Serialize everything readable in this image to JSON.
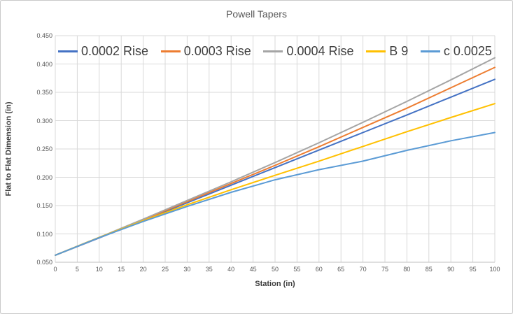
{
  "chart_data": {
    "type": "line",
    "title": "Powell Tapers",
    "xlabel": "Station (in)",
    "ylabel": "Flat to Flat Dimension (in)",
    "xlim": [
      0,
      100
    ],
    "ylim": [
      0.05,
      0.45
    ],
    "x_tick_step": 5,
    "y_tick_step": 0.05,
    "grid": true,
    "legend_position": "top-inside-horizontal",
    "x": [
      0,
      10,
      20,
      30,
      40,
      50,
      60,
      70,
      80,
      90,
      100
    ],
    "series": [
      {
        "name": "0.0002 Rise",
        "color": "#4472C4",
        "values": [
          0.0625,
          0.093,
          0.124,
          0.155,
          0.186,
          0.217,
          0.248,
          0.279,
          0.31,
          0.3415,
          0.373
        ]
      },
      {
        "name": "0.0003 Rise",
        "color": "#ED7D31",
        "values": [
          0.0625,
          0.0935,
          0.125,
          0.157,
          0.189,
          0.221,
          0.254,
          0.288,
          0.322,
          0.358,
          0.394
        ]
      },
      {
        "name": "0.0004 Rise",
        "color": "#A5A5A5",
        "values": [
          0.0625,
          0.094,
          0.126,
          0.159,
          0.192,
          0.226,
          0.261,
          0.297,
          0.334,
          0.372,
          0.411
        ]
      },
      {
        "name": "B 9",
        "color": "#FFC000",
        "values": [
          0.0625,
          0.094,
          0.1235,
          0.1515,
          0.178,
          0.2035,
          0.2285,
          0.2545,
          0.2805,
          0.3055,
          0.33
        ]
      },
      {
        "name": "c 0.0025",
        "color": "#5B9BD5",
        "values": [
          0.0625,
          0.0935,
          0.122,
          0.1485,
          0.1735,
          0.1955,
          0.2135,
          0.2285,
          0.2475,
          0.2645,
          0.279
        ]
      }
    ]
  },
  "style": {
    "grid_color": "#D9D9D9",
    "axis_color": "#BFBFBF",
    "title_color": "#595959",
    "tick_color": "#595959",
    "label_color": "#404040"
  }
}
